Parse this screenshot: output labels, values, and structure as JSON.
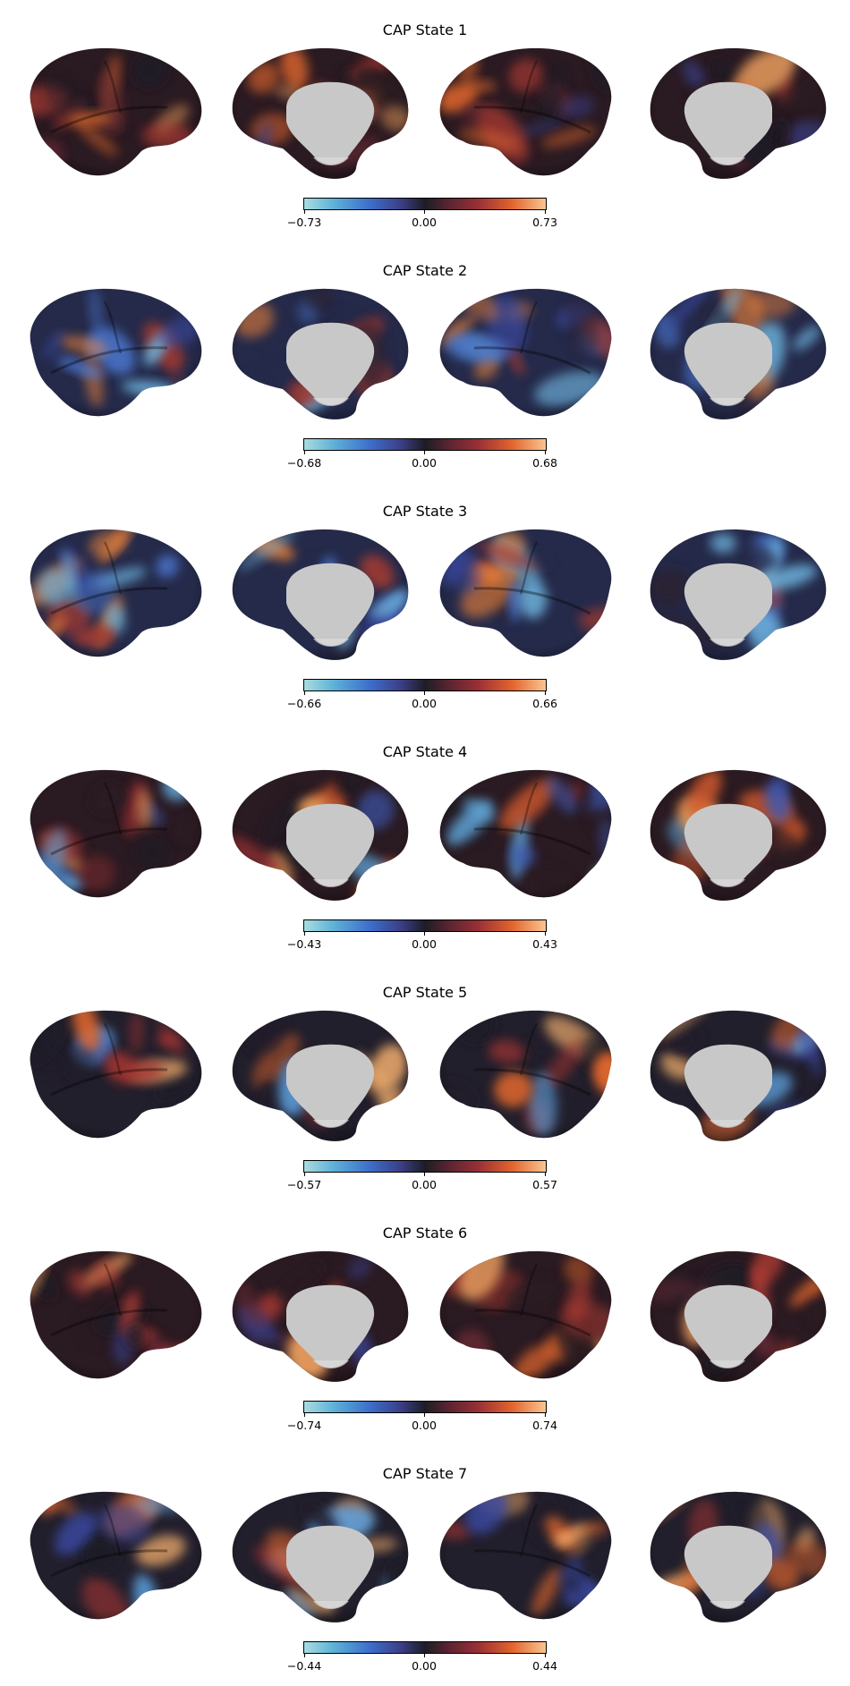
{
  "figure": {
    "panels": [
      {
        "title": "CAP State 1",
        "ticks": [
          "−0.73",
          "0.00",
          "0.73"
        ],
        "scheme": "warm"
      },
      {
        "title": "CAP State 2",
        "ticks": [
          "−0.68",
          "0.00",
          "0.68"
        ],
        "scheme": "cool"
      },
      {
        "title": "CAP State 3",
        "ticks": [
          "−0.66",
          "0.00",
          "0.66"
        ],
        "scheme": "cool"
      },
      {
        "title": "CAP State 4",
        "ticks": [
          "−0.43",
          "0.00",
          "0.43"
        ],
        "scheme": "mixedwarm"
      },
      {
        "title": "CAP State 5",
        "ticks": [
          "−0.57",
          "0.00",
          "0.57"
        ],
        "scheme": "mixed"
      },
      {
        "title": "CAP State 6",
        "ticks": [
          "−0.74",
          "0.00",
          "0.74"
        ],
        "scheme": "warm"
      },
      {
        "title": "CAP State 7",
        "ticks": [
          "−0.44",
          "0.00",
          "0.44"
        ],
        "scheme": "mixed"
      }
    ],
    "colors": {
      "negative_high": "#a9dcdf",
      "negative_mid": "#3d6fcb",
      "neutral": "#1d1d26",
      "positive_mid": "#9a2f36",
      "positive_high": "#fbc58f",
      "medial_wall": "#c8c8c8"
    }
  }
}
